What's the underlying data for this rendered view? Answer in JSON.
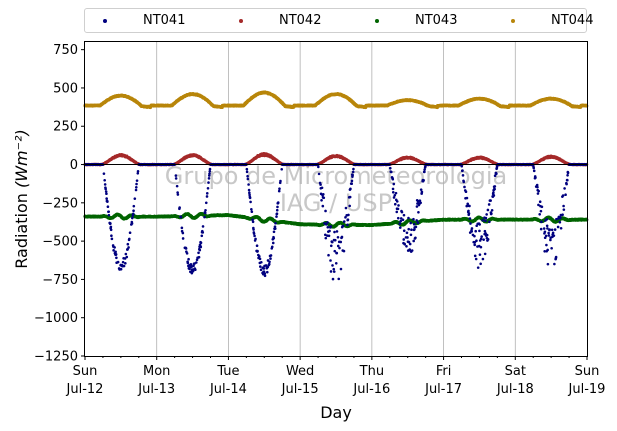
{
  "chart_data": {
    "type": "scatter",
    "xlabel": "Day",
    "ylabel": "Radiation",
    "ylabel_unit": "(Wm⁻²)",
    "ylim": [
      -1250,
      800
    ],
    "yticks": [
      -1250,
      -1000,
      -750,
      -500,
      -250,
      0,
      250,
      500,
      750
    ],
    "ytick_labels": [
      "−1250",
      "−1000",
      "−750",
      "−500",
      "−250",
      "0",
      "250",
      "500",
      "750"
    ],
    "xlim": [
      0,
      7
    ],
    "xticks": [
      0,
      1,
      2,
      3,
      4,
      5,
      6,
      7
    ],
    "xtick_labels": [
      [
        "Sun",
        "Jul-12"
      ],
      [
        "Mon",
        "Jul-13"
      ],
      [
        "Tue",
        "Jul-14"
      ],
      [
        "Wed",
        "Jul-15"
      ],
      [
        "Thu",
        "Jul-16"
      ],
      [
        "Fri",
        "Jul-17"
      ],
      [
        "Sat",
        "Jul-18"
      ],
      [
        "Sun",
        "Jul-19"
      ]
    ],
    "grid": "vertical",
    "legend_position": "top",
    "watermark": [
      "Grupo de Micrometeorologia",
      "IAG / USP"
    ],
    "series": [
      {
        "name": "NT041",
        "color": "#00007f",
        "daily_minimum": [
          -700,
          -720,
          -730,
          -790,
          -620,
          -680,
          -680
        ],
        "night_level": 0
      },
      {
        "name": "NT042",
        "color": "#a52a2a",
        "daily_maximum": [
          60,
          60,
          65,
          55,
          45,
          45,
          50
        ],
        "night_level": 0
      },
      {
        "name": "NT043",
        "color": "#006400",
        "daily_values": [
          -340,
          -340,
          -330,
          -390,
          -395,
          -360,
          -360
        ],
        "night_level": -360
      },
      {
        "name": "NT044",
        "color": "#b8860b",
        "daily_maximum": [
          450,
          460,
          470,
          460,
          420,
          430,
          430
        ],
        "night_level": 385
      }
    ]
  }
}
